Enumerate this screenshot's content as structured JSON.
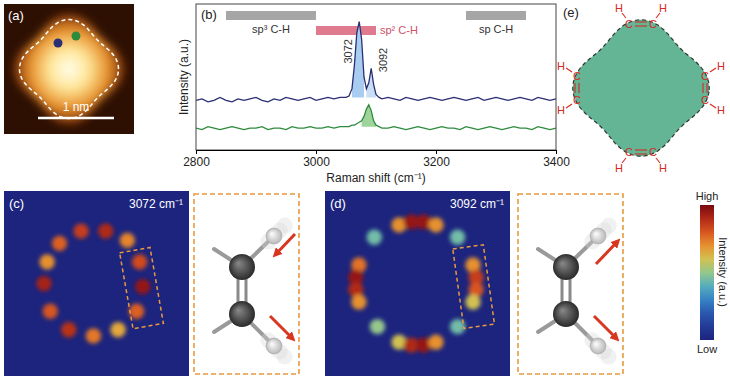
{
  "panel_a": {
    "label": "(a)",
    "scale_bar": "1 nm"
  },
  "chart_data": {
    "type": "line",
    "panel_label": "(b)",
    "x_label": "Raman shift (cm⁻¹)",
    "y_label": "Intensity (a.u.)",
    "x": [
      2800,
      2810,
      2820,
      2830,
      2840,
      2850,
      2860,
      2870,
      2880,
      2890,
      2900,
      2910,
      2920,
      2930,
      2940,
      2950,
      2960,
      2970,
      2980,
      2990,
      3000,
      3010,
      3020,
      3030,
      3040,
      3050,
      3055,
      3060,
      3064,
      3068,
      3072,
      3076,
      3080,
      3084,
      3088,
      3092,
      3096,
      3100,
      3105,
      3110,
      3120,
      3130,
      3140,
      3150,
      3160,
      3170,
      3180,
      3190,
      3200,
      3210,
      3220,
      3230,
      3240,
      3250,
      3260,
      3270,
      3280,
      3290,
      3300,
      3310,
      3320,
      3330,
      3340,
      3350,
      3360,
      3370,
      3380,
      3390,
      3400
    ],
    "series": [
      {
        "color": "#2b2f73",
        "values": [
          3.4,
          3.5,
          3.3,
          3.4,
          3.6,
          3.4,
          3.3,
          3.5,
          3.4,
          3.5,
          3.6,
          3.4,
          3.3,
          3.5,
          3.4,
          3.6,
          3.5,
          3.4,
          3.5,
          3.6,
          3.4,
          3.5,
          3.6,
          3.5,
          3.6,
          3.6,
          3.7,
          4.2,
          5.8,
          8.0,
          8.8,
          7.6,
          5.0,
          4.2,
          4.6,
          5.6,
          4.5,
          3.8,
          3.6,
          3.5,
          3.6,
          3.5,
          3.4,
          3.6,
          3.5,
          3.4,
          3.5,
          3.6,
          3.5,
          3.4,
          3.5,
          3.6,
          3.5,
          3.4,
          3.5,
          3.6,
          3.4,
          3.5,
          3.6,
          3.5,
          3.4,
          3.5,
          3.6,
          3.5,
          3.4,
          3.6,
          3.5,
          3.4,
          3.5
        ]
      },
      {
        "color": "#2e8b3e",
        "values": [
          1.5,
          1.4,
          1.6,
          1.5,
          1.4,
          1.5,
          1.6,
          1.5,
          1.4,
          1.5,
          1.5,
          1.6,
          1.4,
          1.5,
          1.5,
          1.4,
          1.6,
          1.5,
          1.5,
          1.6,
          1.5,
          1.5,
          1.6,
          1.5,
          1.6,
          1.6,
          1.6,
          1.7,
          1.7,
          1.8,
          1.9,
          2.0,
          2.3,
          2.8,
          3.1,
          2.7,
          2.0,
          1.7,
          1.6,
          1.5,
          1.5,
          1.6,
          1.5,
          1.4,
          1.5,
          1.6,
          1.5,
          1.4,
          1.5,
          1.6,
          1.5,
          1.5,
          1.4,
          1.6,
          1.5,
          1.4,
          1.5,
          1.6,
          1.5,
          1.4,
          1.5,
          1.6,
          1.5,
          1.5,
          1.4,
          1.6,
          1.5,
          1.4,
          1.5
        ]
      }
    ],
    "xlim": [
      2800,
      3400
    ],
    "xticks": [
      2800,
      3000,
      3200,
      3400
    ],
    "ylim": [
      0,
      10
    ],
    "tick_labels": "x",
    "ranges": [
      {
        "label": "sp³ C-H",
        "from": 2850,
        "to": 3000,
        "color": "#a6a6a6"
      },
      {
        "label": "sp² C-H",
        "from": 3000,
        "to": 3100,
        "color": "#e07a8e"
      },
      {
        "label": "sp C-H",
        "from": 3250,
        "to": 3350,
        "color": "#a6a6a6"
      }
    ],
    "annotations": [
      {
        "text": "3072",
        "x": 3072,
        "y": 8.8
      },
      {
        "text": "3092",
        "x": 3092,
        "y": 5.6
      }
    ],
    "fills": [
      {
        "series": 0,
        "from": 3060,
        "to": 3080,
        "base": 3.6,
        "color": "#a9cdf0"
      },
      {
        "series": 0,
        "from": 3084,
        "to": 3100,
        "base": 3.6,
        "color": "#c9def5"
      },
      {
        "series": 1,
        "from": 3076,
        "to": 3100,
        "base": 1.6,
        "color": "#9ed49a"
      }
    ]
  },
  "panel_c": {
    "label": "(c)",
    "wavenumber": "3072 cm⁻¹",
    "xlim": [
      0,
      30
    ],
    "ylim": [
      0,
      30
    ],
    "spots": [
      [
        9,
        8.5,
        0.78
      ],
      [
        12.5,
        6.5,
        0.85
      ],
      [
        16.5,
        6.5,
        0.9
      ],
      [
        20,
        8,
        0.72
      ],
      [
        22,
        11.5,
        0.82
      ],
      [
        22.5,
        15.5,
        0.95
      ],
      [
        21.5,
        19.5,
        0.78
      ],
      [
        18.5,
        22.5,
        0.66
      ],
      [
        14.5,
        23.5,
        0.74
      ],
      [
        10.5,
        22.5,
        0.88
      ],
      [
        7.5,
        19.5,
        0.8
      ],
      [
        6.5,
        15,
        0.92
      ],
      [
        7,
        11.5,
        0.7
      ]
    ]
  },
  "panel_d": {
    "label": "(d)",
    "wavenumber": "3092 cm⁻¹",
    "xlim": [
      0,
      30
    ],
    "ylim": [
      0,
      30
    ],
    "spots": [
      [
        8,
        7.5,
        0.45
      ],
      [
        21.5,
        7.5,
        0.45
      ],
      [
        21.5,
        22,
        0.45
      ],
      [
        8.5,
        22,
        0.5
      ],
      [
        12,
        5.5,
        0.7
      ],
      [
        14,
        5,
        0.95
      ],
      [
        16,
        5,
        0.95
      ],
      [
        18,
        5.5,
        0.7
      ],
      [
        24,
        12,
        0.7
      ],
      [
        24.5,
        14,
        0.85
      ],
      [
        24.5,
        16,
        0.8
      ],
      [
        24,
        18,
        0.6
      ],
      [
        12,
        24.5,
        0.6
      ],
      [
        14,
        25,
        0.9
      ],
      [
        16,
        25,
        0.95
      ],
      [
        18,
        24.5,
        0.7
      ],
      [
        5.5,
        12,
        0.75
      ],
      [
        5,
        14,
        0.95
      ],
      [
        5,
        16,
        0.9
      ],
      [
        5.5,
        18,
        0.7
      ]
    ]
  },
  "colorbar": {
    "title": "Intensity (a.u.)",
    "high": "High",
    "low": "Low",
    "range": [
      0,
      1
    ],
    "colors": [
      "#1c247e",
      "#2a4db0",
      "#3bb8e0",
      "#f0e23a",
      "#e8441e",
      "#7a0a10"
    ]
  },
  "panel_e": {
    "label": "(e)",
    "carbon": "C",
    "hydrogen": "H",
    "color": "#d42a1e",
    "fill": "#63b596"
  }
}
